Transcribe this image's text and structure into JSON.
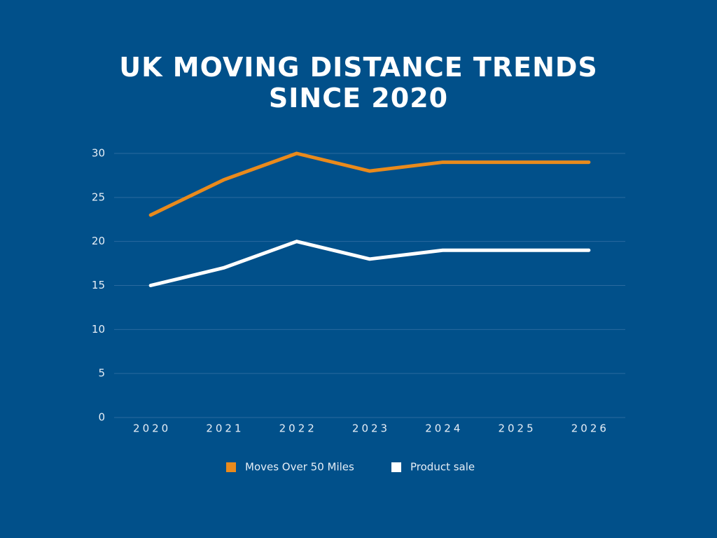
{
  "chart_data": {
    "type": "line",
    "title": "UK MOVING DISTANCE TRENDS SINCE 2020",
    "categories": [
      "2020",
      "2021",
      "2022",
      "2023",
      "2024",
      "2025",
      "2026"
    ],
    "series": [
      {
        "name": "Moves Over 50 Miles",
        "color": "#e98a1c",
        "values": [
          23,
          27,
          30,
          28,
          29,
          29,
          29
        ]
      },
      {
        "name": "Product sale",
        "color": "#ffffff",
        "values": [
          15,
          17,
          20,
          18,
          19,
          19,
          19
        ]
      }
    ],
    "ylim": [
      0,
      30
    ],
    "yticks": [
      0,
      5,
      10,
      15,
      20,
      25,
      30
    ],
    "grid": true,
    "legend": "bottom"
  }
}
